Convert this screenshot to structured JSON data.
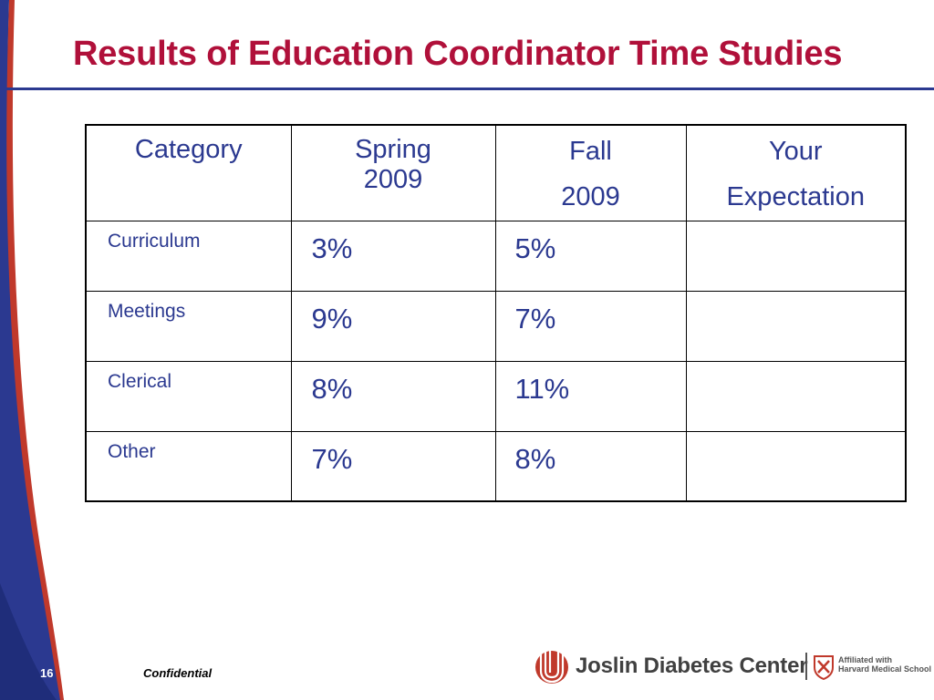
{
  "slide": {
    "title": "Results of Education Coordinator Time Studies"
  },
  "table": {
    "headers": {
      "category": "Category",
      "spring_line1": "Spring",
      "spring_line2": "2009",
      "fall_line1": "Fall",
      "fall_line2": "2009",
      "expectation_line1": "Your",
      "expectation_line2": "Expectation"
    },
    "rows": [
      {
        "category": "Curriculum",
        "spring_2009": "3%",
        "fall_2009": "5%",
        "your_expectation": ""
      },
      {
        "category": "Meetings",
        "spring_2009": "9%",
        "fall_2009": "7%",
        "your_expectation": ""
      },
      {
        "category": "Clerical",
        "spring_2009": "8%",
        "fall_2009": "11%",
        "your_expectation": ""
      },
      {
        "category": "Other",
        "spring_2009": "7%",
        "fall_2009": "8%",
        "your_expectation": ""
      }
    ]
  },
  "footer": {
    "page_number": "16",
    "confidential": "Confidential"
  },
  "logo": {
    "name": "Joslin Diabetes Center",
    "affiliation_line1": "Affiliated with",
    "affiliation_line2": "Harvard Medical School"
  },
  "colors": {
    "title": "#b0103a",
    "table_text": "#2b3990",
    "rule": "#2b3990",
    "logo_red": "#c0392b",
    "decor_blue": "#2b3990"
  }
}
